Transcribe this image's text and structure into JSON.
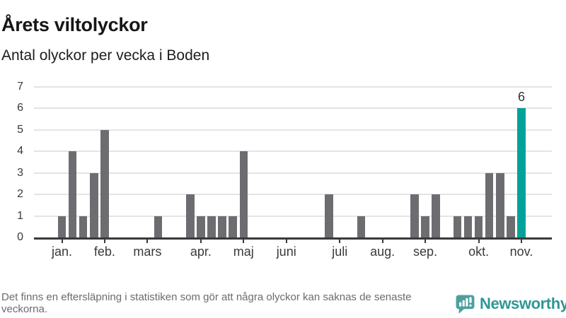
{
  "chart_data": {
    "type": "bar",
    "title": "Årets viltolyckor",
    "subtitle": "Antal olyckor per vecka i Boden",
    "xlabel": "",
    "ylabel": "",
    "ylim": [
      0,
      7
    ],
    "yticks": [
      0,
      1,
      2,
      3,
      4,
      5,
      6,
      7
    ],
    "grid": true,
    "legend": false,
    "x_unit": "vecka",
    "x_start_week": 1,
    "values": [
      1,
      4,
      1,
      3,
      5,
      0,
      0,
      0,
      0,
      1,
      0,
      0,
      2,
      1,
      1,
      1,
      1,
      4,
      0,
      0,
      0,
      0,
      0,
      0,
      0,
      2,
      0,
      0,
      1,
      0,
      0,
      0,
      0,
      2,
      1,
      2,
      0,
      1,
      1,
      1,
      3,
      3,
      1,
      6
    ],
    "month_ticks": [
      {
        "label": "jan.",
        "week": 1
      },
      {
        "label": "feb.",
        "week": 5
      },
      {
        "label": "mars",
        "week": 9
      },
      {
        "label": "apr.",
        "week": 14
      },
      {
        "label": "maj",
        "week": 18
      },
      {
        "label": "juni",
        "week": 22
      },
      {
        "label": "juli",
        "week": 27
      },
      {
        "label": "aug.",
        "week": 31
      },
      {
        "label": "sep.",
        "week": 35
      },
      {
        "label": "okt.",
        "week": 40
      },
      {
        "label": "nov.",
        "week": 44
      }
    ],
    "highlight": {
      "week": 44,
      "value": 6,
      "label": "6"
    },
    "colors": {
      "bar": "#6d6d71",
      "highlight": "#00a29a",
      "grid": "#e4e4e4",
      "axis": "#3a3a3a",
      "tick_text": "#3a3a3a",
      "value_text": "#333333"
    }
  },
  "footer": {
    "note": "Det finns en eftersläpning i statistiken som gör att några olyckor kan saknas de senaste veckorna.",
    "brand": "Newsworthy",
    "brand_color": "#2f9795",
    "logo_color": "#4ba09e"
  }
}
